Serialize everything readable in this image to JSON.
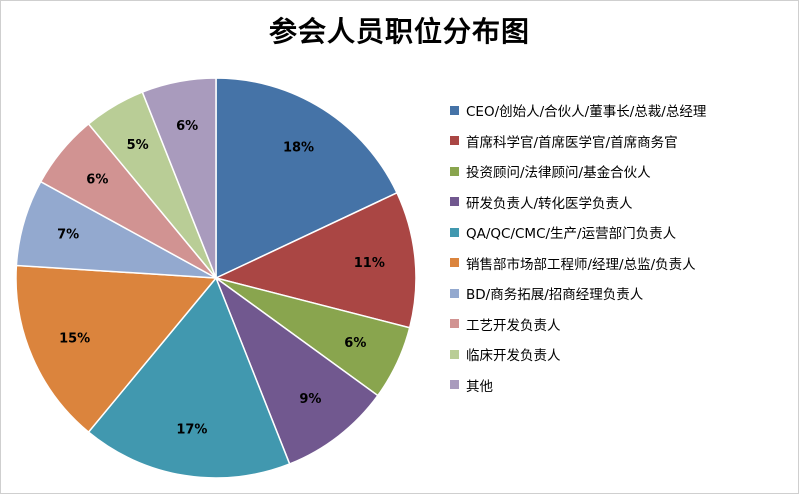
{
  "chart_data": {
    "type": "pie",
    "title": "参会人员职位分布图",
    "legend_position": "right",
    "start_angle_deg": 0,
    "direction": "clockwise",
    "slices": [
      {
        "name": "CEO/创始人/合伙人/董事长/总裁/总经理",
        "value": 18,
        "label": "18%",
        "color": "#4573a7"
      },
      {
        "name": "首席科学官/首席医学官/首席商务官",
        "value": 11,
        "label": "11%",
        "color": "#aa4644"
      },
      {
        "name": "投资顾问/法律顾问/基金合伙人",
        "value": 6,
        "label": "6%",
        "color": "#89a54e"
      },
      {
        "name": "研发负责人/转化医学负责人",
        "value": 9,
        "label": "9%",
        "color": "#71588f"
      },
      {
        "name": "QA/QC/CMC/生产/运营部门负责人",
        "value": 17,
        "label": "17%",
        "color": "#4198af"
      },
      {
        "name": "销售部市场部工程师/经理/总监/负责人",
        "value": 15,
        "label": "15%",
        "color": "#db843d"
      },
      {
        "name": "BD/商务拓展/招商经理负责人",
        "value": 7,
        "label": "7%",
        "color": "#93a9cf"
      },
      {
        "name": "工艺开发负责人",
        "value": 6,
        "label": "6%",
        "color": "#d19392"
      },
      {
        "name": "临床开发负责人",
        "value": 5,
        "label": "5%",
        "color": "#b9cd96"
      },
      {
        "name": "其他",
        "value": 6,
        "label": "6%",
        "color": "#a99bbd"
      }
    ]
  }
}
